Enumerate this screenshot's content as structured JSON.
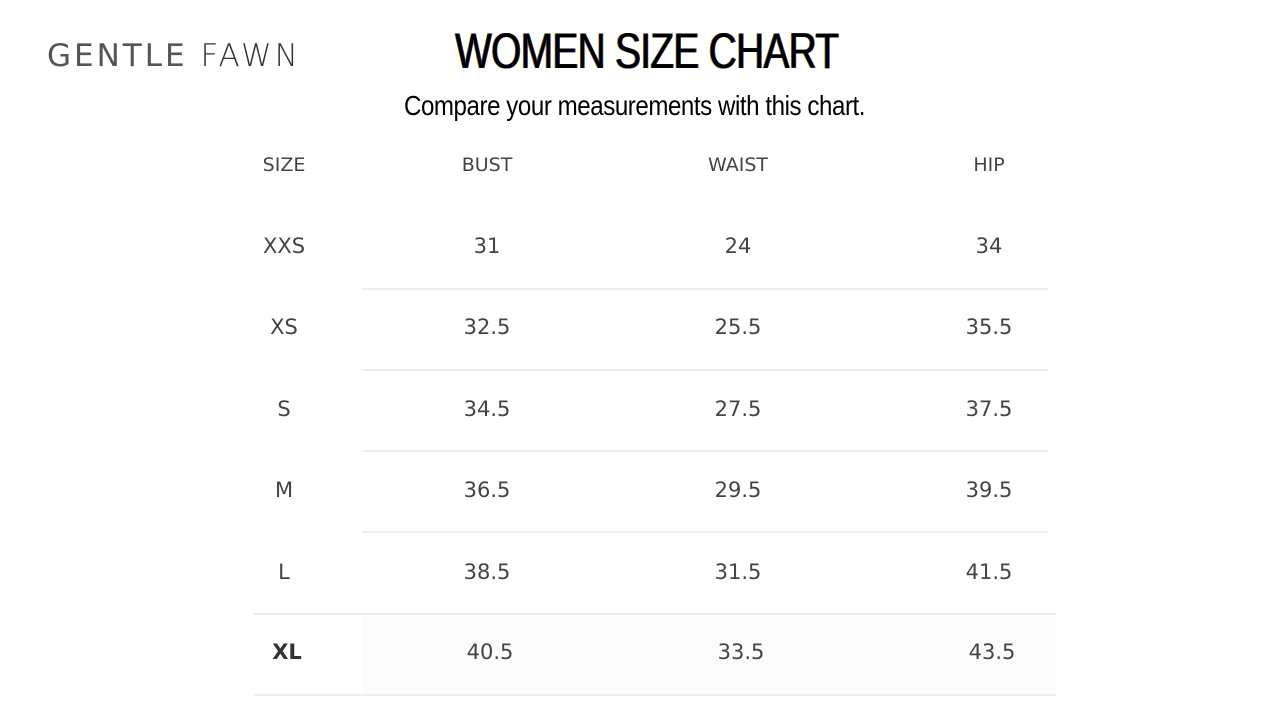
{
  "brand": {
    "part1": "GENTLE",
    "part2": "FAWN"
  },
  "title": "WOMEN SIZE CHART",
  "subtitle": "Compare your measurements with this chart.",
  "table": {
    "headers": [
      "SIZE",
      "BUST",
      "WAIST",
      "HIP"
    ],
    "rows": [
      [
        "XXS",
        "31",
        "24",
        "34"
      ],
      [
        "XS",
        "32.5",
        "25.5",
        "35.5"
      ],
      [
        "S",
        "34.5",
        "27.5",
        "37.5"
      ],
      [
        "M",
        "36.5",
        "29.5",
        "39.5"
      ],
      [
        "L",
        "38.5",
        "31.5",
        "41.5"
      ],
      [
        "XL",
        "40.5",
        "33.5",
        "43.5"
      ]
    ]
  }
}
